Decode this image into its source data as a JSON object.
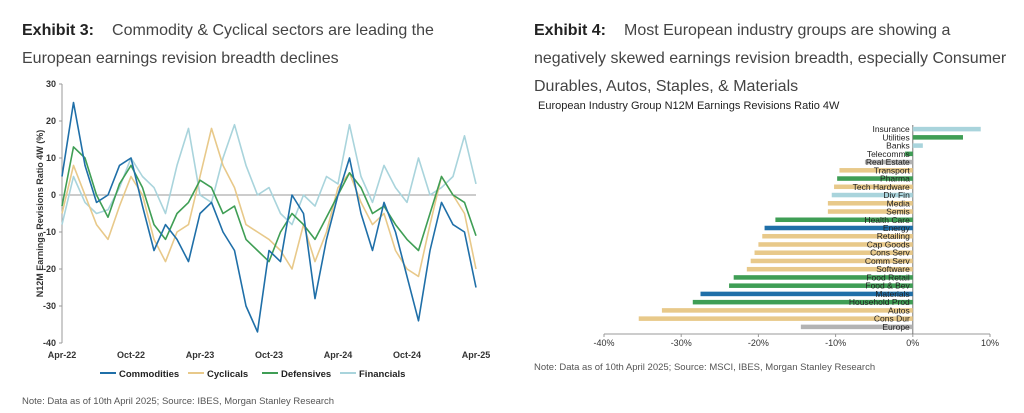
{
  "left": {
    "exhibit_label": "Exhibit 3:",
    "headline": "Commodity & Cyclical sectors are leading the European earnings revision breadth declines",
    "note": "Note: Data as of 10th April 2025; Source: IBES, Morgan Stanley Research"
  },
  "right": {
    "exhibit_label": "Exhibit 4:",
    "headline": "Most European industry groups are showing a negatively skewed earnings revision breadth, especially Consumer Durables, Autos, Staples, & Materials",
    "note": "Note: Data as of 10th April 2025; Source: MSCI, IBES, Morgan Stanley Research"
  },
  "chart_data": [
    {
      "type": "line",
      "ylabel": "N12M Earnings Revisions Ratio 4W (%)",
      "ylim": [
        -40,
        30
      ],
      "yticks": [
        30,
        20,
        10,
        0,
        -10,
        -20,
        -30,
        -40
      ],
      "xticks": [
        "Apr-22",
        "Oct-22",
        "Apr-23",
        "Oct-23",
        "Apr-24",
        "Oct-24",
        "Apr-25"
      ],
      "x_months": [
        "2022-04",
        "2022-05",
        "2022-06",
        "2022-07",
        "2022-08",
        "2022-09",
        "2022-10",
        "2022-11",
        "2022-12",
        "2023-01",
        "2023-02",
        "2023-03",
        "2023-04",
        "2023-05",
        "2023-06",
        "2023-07",
        "2023-08",
        "2023-09",
        "2023-10",
        "2023-11",
        "2023-12",
        "2024-01",
        "2024-02",
        "2024-03",
        "2024-04",
        "2024-05",
        "2024-06",
        "2024-07",
        "2024-08",
        "2024-09",
        "2024-10",
        "2024-11",
        "2024-12",
        "2025-01",
        "2025-02",
        "2025-03",
        "2025-04"
      ],
      "legend_position": "bottom",
      "grid": false,
      "series": [
        {
          "name": "Commodities",
          "color": "#1f6fa8",
          "values": [
            5,
            25,
            8,
            -2,
            0,
            8,
            10,
            -3,
            -15,
            -8,
            -12,
            -18,
            -5,
            -2,
            -10,
            -15,
            -30,
            -37,
            -15,
            -18,
            0,
            -5,
            -28,
            -12,
            0,
            10,
            -5,
            -15,
            -2,
            -10,
            -22,
            -34,
            -15,
            -2,
            -8,
            -10,
            -25
          ]
        },
        {
          "name": "Cyclicals",
          "color": "#e8c98a",
          "values": [
            -5,
            8,
            0,
            -8,
            -12,
            -3,
            5,
            0,
            -12,
            -18,
            -10,
            -8,
            5,
            18,
            8,
            2,
            -8,
            -10,
            -12,
            -15,
            -20,
            -8,
            -18,
            -10,
            2,
            6,
            -2,
            -8,
            -5,
            -15,
            -20,
            -22,
            -8,
            5,
            0,
            -5,
            -20
          ]
        },
        {
          "name": "Defensives",
          "color": "#3f9e55",
          "values": [
            -3,
            13,
            10,
            0,
            -6,
            3,
            8,
            2,
            -8,
            -12,
            -5,
            -2,
            4,
            2,
            -5,
            -3,
            -12,
            -15,
            -18,
            -10,
            -5,
            -8,
            -12,
            -6,
            0,
            6,
            2,
            -5,
            -3,
            -8,
            -12,
            -15,
            -5,
            5,
            0,
            -2,
            -11
          ]
        },
        {
          "name": "Financials",
          "color": "#a9d4dc",
          "values": [
            -8,
            5,
            -2,
            -5,
            -4,
            2,
            10,
            5,
            2,
            -5,
            8,
            18,
            0,
            -2,
            10,
            19,
            8,
            0,
            2,
            -5,
            -8,
            0,
            -3,
            5,
            3,
            19,
            5,
            -2,
            8,
            2,
            -2,
            10,
            0,
            2,
            5,
            16,
            3
          ]
        }
      ]
    },
    {
      "type": "bar",
      "orientation": "horizontal",
      "title": "European Industry Group N12M Earnings Revisions Ratio 4W",
      "xlim": [
        -40,
        10
      ],
      "xticks": [
        "-40%",
        "-30%",
        "-20%",
        "-10%",
        "0%",
        "10%"
      ],
      "categories": [
        "Insurance",
        "Utilities",
        "Banks",
        "Telecomms",
        "Real Estate",
        "Transport",
        "Pharma",
        "Tech Hardware",
        "Div Fin",
        "Media",
        "Semis",
        "Health Care",
        "Energy",
        "Retailing",
        "Cap Goods",
        "Cons Serv",
        "Comm Serv",
        "Software",
        "Food Retail",
        "Food & Bev",
        "Materials",
        "Household Prod",
        "Autos",
        "Cons Dur",
        "Europe"
      ],
      "values": [
        8.8,
        6.5,
        1.3,
        -1.0,
        -6.2,
        -9.5,
        -9.8,
        -10.2,
        -10.5,
        -11.0,
        -11.0,
        -17.8,
        -19.2,
        -19.5,
        -20.0,
        -20.5,
        -21.0,
        -21.5,
        -23.2,
        -23.8,
        -27.5,
        -28.5,
        -32.5,
        -35.5,
        -14.5
      ],
      "colors": [
        "#a9d4dc",
        "#3f9e55",
        "#a9d4dc",
        "#3f9e55",
        "#b3b3b3",
        "#e8c98a",
        "#3f9e55",
        "#e8c98a",
        "#a9d4dc",
        "#e8c98a",
        "#e8c98a",
        "#3f9e55",
        "#1f6fa8",
        "#e8c98a",
        "#e8c98a",
        "#e8c98a",
        "#e8c98a",
        "#e8c98a",
        "#3f9e55",
        "#3f9e55",
        "#1f6fa8",
        "#3f9e55",
        "#e8c98a",
        "#e8c98a",
        "#b3b3b3"
      ]
    }
  ]
}
